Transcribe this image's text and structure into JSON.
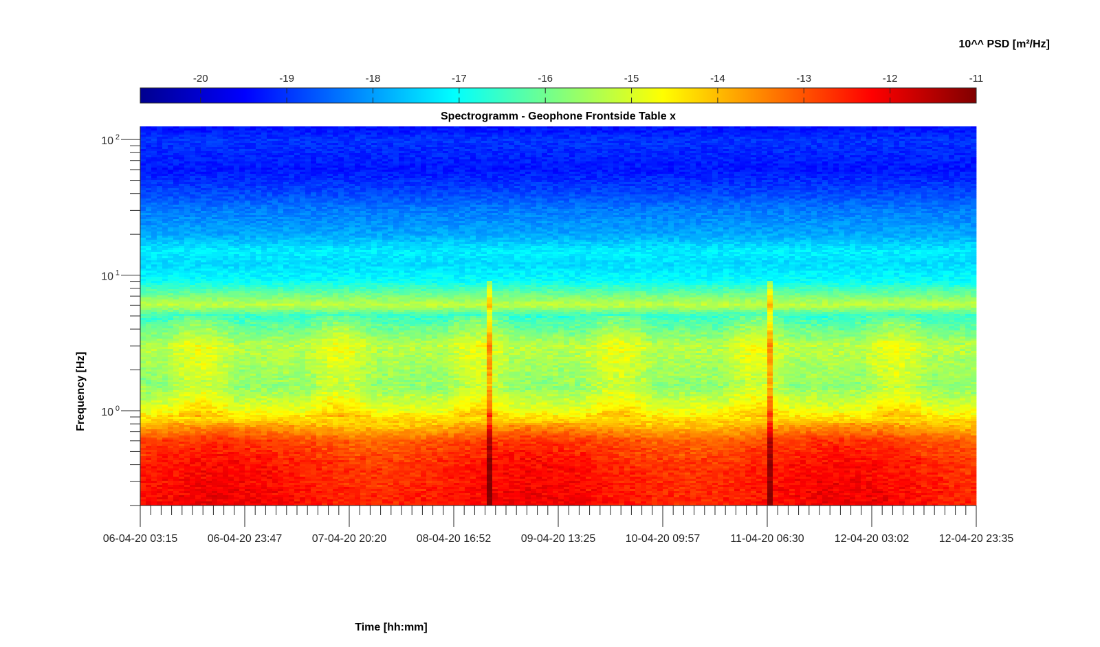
{
  "chart_data": {
    "type": "heatmap",
    "title": "Spectrogramm - Geophone Frontside Table x",
    "xlabel": "Time [hh:mm]",
    "ylabel": "Frequency [Hz]",
    "y_scale": "log",
    "ylim": [
      0.2,
      125
    ],
    "y_ticks": [
      {
        "base": "10",
        "exp": "2",
        "value": 100
      },
      {
        "base": "10",
        "exp": "1",
        "value": 10
      },
      {
        "base": "10",
        "exp": "0",
        "value": 1
      }
    ],
    "x_tick_labels": [
      "06-04-20 03:15",
      "06-04-20 23:47",
      "07-04-20 20:20",
      "08-04-20 16:52",
      "09-04-20 13:25",
      "10-04-20 09:57",
      "11-04-20 06:30",
      "12-04-20 03:02",
      "12-04-20 23:35"
    ],
    "colorbar": {
      "label": "10^^ PSD [m²/Hz]",
      "range": [
        -20.7,
        -11
      ],
      "tick_labels": [
        "-20",
        "-19",
        "-18",
        "-17",
        "-16",
        "-15",
        "-14",
        "-13",
        "-12",
        "-11"
      ],
      "tick_values": [
        -20,
        -19,
        -18,
        -17,
        -16,
        -15,
        -14,
        -13,
        -12,
        -11
      ],
      "colormap": "jet"
    },
    "psd_profile": {
      "note_free": true,
      "freq_hz": [
        125,
        100,
        60,
        40,
        30,
        20,
        15,
        12,
        9,
        6,
        5,
        3,
        1.5,
        1,
        0.8,
        0.6,
        0.4,
        0.2
      ],
      "log10_psd": [
        -19.4,
        -19.0,
        -19.3,
        -18.8,
        -18.3,
        -17.9,
        -17.2,
        -17.4,
        -17.0,
        -15.2,
        -16.6,
        -15.3,
        -15.7,
        -14.8,
        -14.0,
        -12.9,
        -12.5,
        -12.3
      ]
    },
    "events": [
      {
        "time": "08-04-20 16:52"
      },
      {
        "time": "11-04-20 06:30"
      }
    ],
    "colors": {
      "low": "#00008f",
      "mid": "#00ffff",
      "high": "#800000"
    }
  }
}
